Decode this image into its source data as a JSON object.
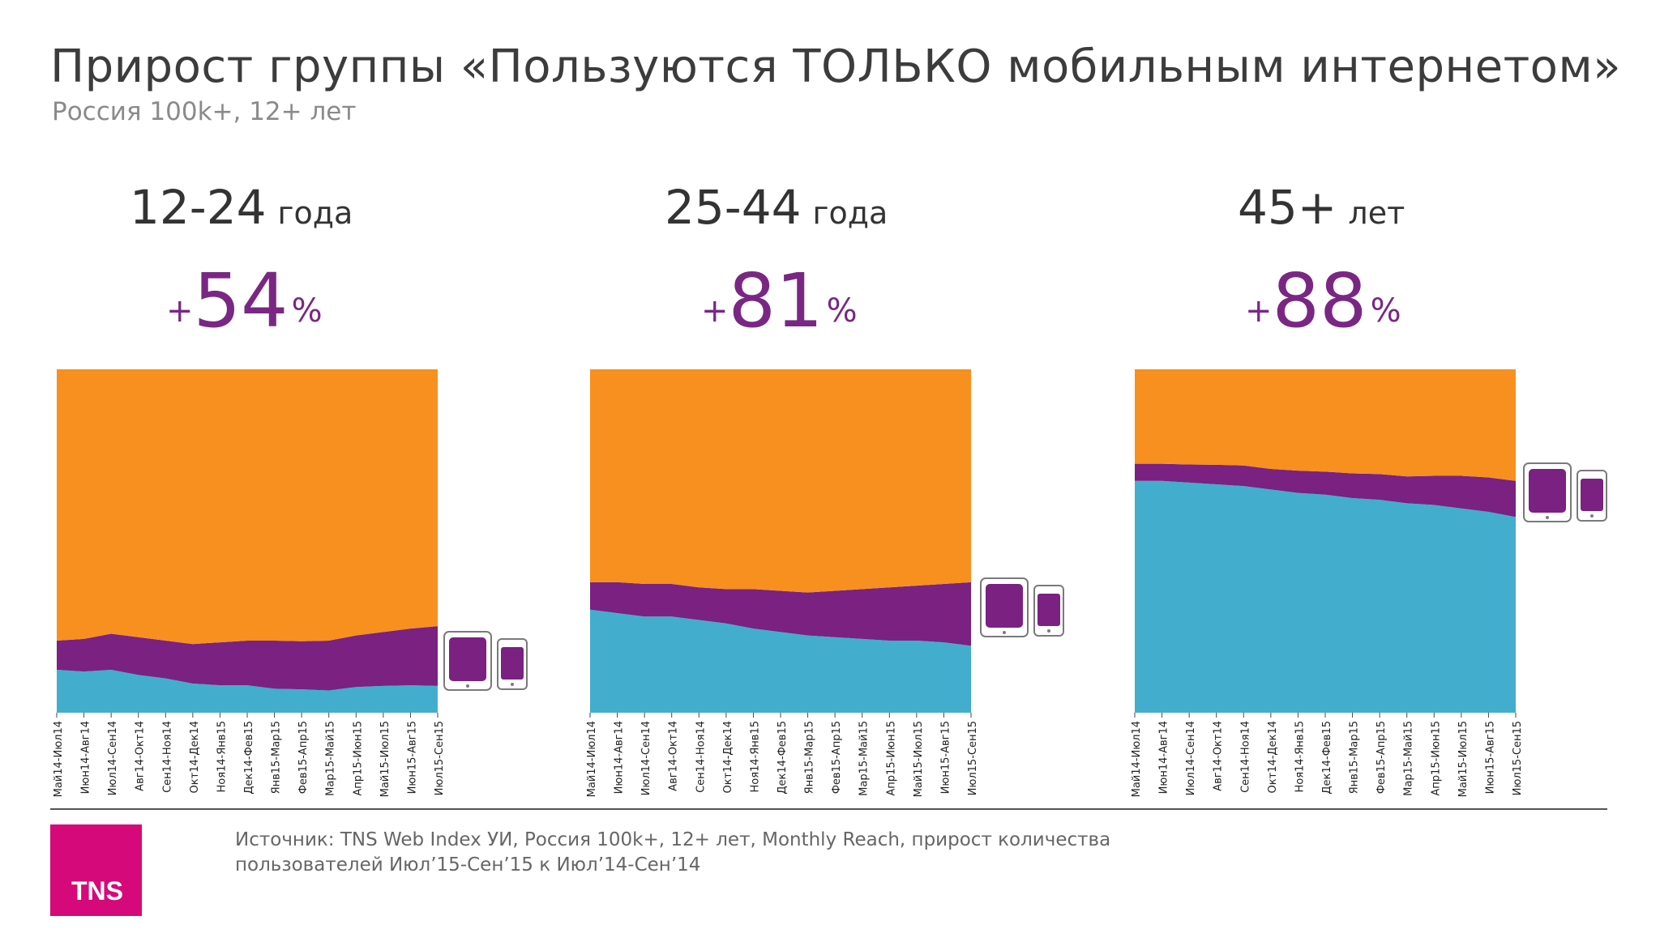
{
  "header": {
    "title": "Прирост группы «Пользуются ТОЛЬКО мобильным интернетом»",
    "subtitle": "Россия 100k+, 12+ лет"
  },
  "colors": {
    "orange": "#f7901e",
    "purple": "#7a2182",
    "blue": "#43adcd",
    "accent_text": "#7a2784",
    "device_frame": "#7a7a7a"
  },
  "panels": [
    {
      "age_range": "12-24",
      "age_unit": "года",
      "plus": "+",
      "growth_value": "54",
      "percent": "%"
    },
    {
      "age_range": "25-44",
      "age_unit": "года",
      "plus": "+",
      "growth_value": "81",
      "percent": "%"
    },
    {
      "age_range": "45+",
      "age_unit": "лет",
      "plus": "+",
      "growth_value": "88",
      "percent": "%"
    }
  ],
  "chart_data": [
    {
      "type": "area",
      "stacked": true,
      "normalized": true,
      "ylim": [
        0,
        100
      ],
      "x": [
        "Май14-Июл14",
        "Июн14-Авг14",
        "Июл14-Сен14",
        "Авг14-Окт14",
        "Сен14-Ноя14",
        "Окт14-Дек14",
        "Ноя14-Янв15",
        "Дек14-Фев15",
        "Янв15-Мар15",
        "Фев15-Апр15",
        "Мар15-Май15",
        "Апр15-Июн15",
        "Май15-Июл15",
        "Июн15-Авг15",
        "Июл15-Сен15"
      ],
      "series": [
        {
          "color": "#43adcd",
          "values": [
            12.5,
            12.0,
            12.5,
            11.0,
            10.0,
            8.5,
            8.0,
            8.0,
            7.0,
            6.8,
            6.5,
            7.5,
            7.8,
            8.0,
            7.8
          ]
        },
        {
          "color": "#7a2182",
          "values": [
            8.5,
            9.5,
            10.5,
            11.0,
            11.0,
            11.5,
            12.5,
            13.0,
            14.0,
            14.0,
            14.5,
            15.0,
            15.7,
            16.5,
            17.4
          ]
        },
        {
          "color": "#f7901e",
          "values": [
            79.0,
            78.5,
            77.0,
            78.0,
            79.0,
            80.0,
            79.5,
            79.0,
            79.0,
            79.2,
            79.0,
            77.5,
            76.5,
            75.5,
            74.8
          ]
        }
      ]
    },
    {
      "type": "area",
      "stacked": true,
      "normalized": true,
      "ylim": [
        0,
        100
      ],
      "x": [
        "Май14-Июл14",
        "Июн14-Авг14",
        "Июл14-Сен14",
        "Авг14-Окт14",
        "Сен14-Ноя14",
        "Окт14-Дек14",
        "Ноя14-Янв15",
        "Дек14-Фев15",
        "Янв15-Мар15",
        "Фев15-Апр15",
        "Мар15-Май15",
        "Апр15-Июн15",
        "Май15-Июл15",
        "Июн15-Авг15",
        "Июл15-Сен15"
      ],
      "series": [
        {
          "color": "#43adcd",
          "values": [
            30.0,
            29.0,
            28.0,
            28.0,
            27.0,
            26.0,
            24.5,
            23.5,
            22.5,
            22.0,
            21.5,
            21.0,
            21.0,
            20.5,
            19.5
          ]
        },
        {
          "color": "#7a2182",
          "values": [
            8.0,
            9.0,
            9.5,
            9.5,
            9.5,
            10.0,
            11.5,
            12.0,
            12.5,
            13.5,
            14.5,
            15.5,
            16.0,
            17.0,
            18.5
          ]
        },
        {
          "color": "#f7901e",
          "values": [
            62.0,
            62.0,
            62.5,
            62.5,
            63.5,
            64.0,
            64.0,
            64.5,
            65.0,
            64.5,
            64.0,
            63.5,
            63.0,
            62.5,
            62.0
          ]
        }
      ]
    },
    {
      "type": "area",
      "stacked": true,
      "normalized": true,
      "ylim": [
        0,
        100
      ],
      "x": [
        "Май14-Июл14",
        "Июн14-Авг14",
        "Июл14-Сен14",
        "Авг14-Окт14",
        "Сен14-Ноя14",
        "Окт14-Дек14",
        "Ноя14-Янв15",
        "Дек14-Фев15",
        "Янв15-Мар15",
        "Фев15-Апр15",
        "Мар15-Май15",
        "Апр15-Июн15",
        "Май15-Июл15",
        "Июн15-Авг15",
        "Июл15-Сен15"
      ],
      "series": [
        {
          "color": "#43adcd",
          "values": [
            67.5,
            67.5,
            67.0,
            66.5,
            66.0,
            65.0,
            64.0,
            63.5,
            62.5,
            62.0,
            61.0,
            60.5,
            59.5,
            58.5,
            57.0
          ]
        },
        {
          "color": "#7a2182",
          "values": [
            5.0,
            5.0,
            5.3,
            5.7,
            6.0,
            6.0,
            6.5,
            6.7,
            7.2,
            7.5,
            7.8,
            8.5,
            9.5,
            10.0,
            10.5
          ]
        },
        {
          "color": "#f7901e",
          "values": [
            27.5,
            27.5,
            27.7,
            27.8,
            28.0,
            29.0,
            29.5,
            29.8,
            30.3,
            30.5,
            31.2,
            31.0,
            31.0,
            31.5,
            32.5
          ]
        }
      ]
    }
  ],
  "footer": {
    "source_line1": "Источник: TNS Web Index УИ, Россия 100k+, 12+ лет, Monthly Reach, прирост количества",
    "source_line2": "пользователей Июл’15-Сен’15 к Июл’14-Сен’14",
    "logo_text": "TNS"
  }
}
